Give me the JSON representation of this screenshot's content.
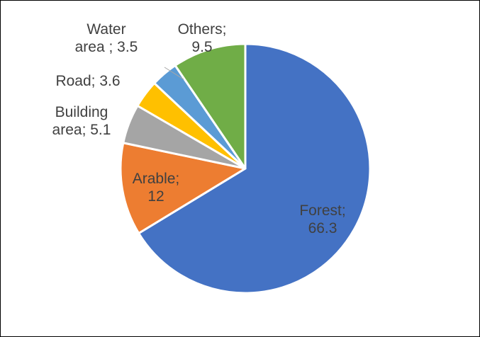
{
  "chart_data": {
    "type": "pie",
    "title": "",
    "legend": "none",
    "slices": [
      {
        "name": "Forest",
        "value": 66.3,
        "color": "#4472C4",
        "label_lines": [
          "Forest;",
          "66.3"
        ]
      },
      {
        "name": "Arable",
        "value": 12,
        "color": "#ED7D31",
        "label_lines": [
          "Arable;",
          "12"
        ]
      },
      {
        "name": "Building area",
        "value": 5.1,
        "color": "#A5A5A5",
        "label_lines": [
          "Building",
          "area; 5.1"
        ]
      },
      {
        "name": "Road",
        "value": 3.6,
        "color": "#FFC000",
        "label_lines": [
          "Road; 3.6"
        ]
      },
      {
        "name": "Water area",
        "value": 3.5,
        "color": "#5B9BD5",
        "label_lines": [
          "Water",
          "area ; 3.5"
        ]
      },
      {
        "name": "Others",
        "value": 9.5,
        "color": "#70AD47",
        "label_lines": [
          "Others;",
          "9.5"
        ]
      }
    ]
  }
}
